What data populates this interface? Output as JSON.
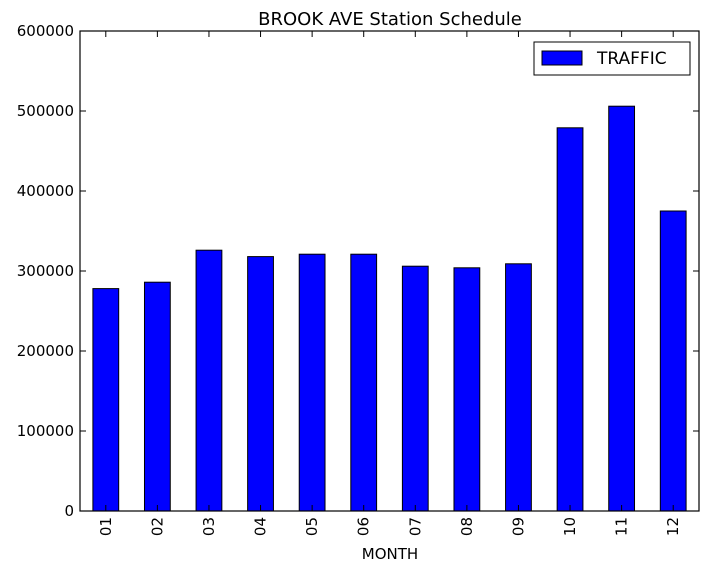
{
  "chart_data": {
    "type": "bar",
    "title": "BROOK AVE Station Schedule",
    "xlabel": "MONTH",
    "ylabel": "",
    "categories": [
      "01",
      "02",
      "03",
      "04",
      "05",
      "06",
      "07",
      "08",
      "09",
      "10",
      "11",
      "12"
    ],
    "series": [
      {
        "name": "TRAFFIC",
        "color": "#0000ff",
        "values": [
          278000,
          286000,
          326000,
          318000,
          321000,
          321000,
          306000,
          304000,
          309000,
          479000,
          506000,
          375000
        ]
      }
    ],
    "ylim": [
      0,
      600000
    ],
    "yticks": [
      "0",
      "100000",
      "200000",
      "300000",
      "400000",
      "500000",
      "600000"
    ],
    "grid": false,
    "legend_position": "top-right"
  }
}
